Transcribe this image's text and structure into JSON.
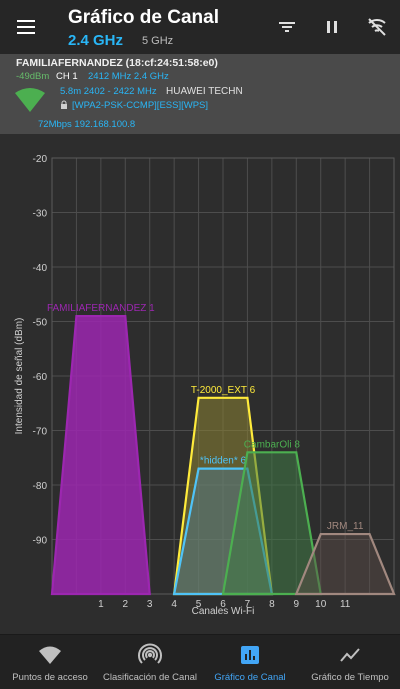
{
  "toolbar": {
    "title": "Gráfico de Canal",
    "band_active": "2.4 GHz",
    "band_inactive": "5 GHz",
    "icons": [
      "menu-icon",
      "filter-icon",
      "pause-icon",
      "wifi-off-icon"
    ]
  },
  "ap_info": {
    "ssid": "FAMILIAFERNANDEZ (18:cf:24:51:58:e0)",
    "signal": "-49dBm",
    "channel": "CH 1",
    "frequency": "2412 MHz  2.4 GHz",
    "range": "5.8m  2402 - 2422 MHz",
    "vendor": "HUAWEI TECHN",
    "capabilities": "[WPA2-PSK-CCMP][ESS][WPS]",
    "link": "72Mbps 192.168.100.8",
    "icons": [
      "wifi-signal-icon",
      "lock-icon"
    ]
  },
  "chart_data": {
    "type": "area",
    "xlabel": "Canales Wi-Fi",
    "ylabel": "Intensidad de señal (dBm)",
    "ylim": [
      -100,
      -20
    ],
    "yticks": [
      -20,
      -30,
      -40,
      -50,
      -60,
      -70,
      -80,
      -90
    ],
    "xlim": [
      -1,
      13
    ],
    "xticks": [
      "1",
      "2",
      "3",
      "4",
      "5",
      "6",
      "7",
      "8",
      "9",
      "10",
      "11"
    ],
    "grid": true,
    "series": [
      {
        "name": "FAMILIAFERNANDEZ 1",
        "channel": 1,
        "signal": -49,
        "color": "#9c27b0",
        "fill": "#9c27b0",
        "fill_opacity": 0.85
      },
      {
        "name": "T-2000_EXT 6",
        "channel": 6,
        "signal": -64,
        "color": "#ffeb3b",
        "fill": "#8d8433",
        "fill_opacity": 0.55
      },
      {
        "name": "*hidden* 6",
        "channel": 6,
        "signal": -77,
        "color": "#4fc3f7",
        "fill": "#4f7f96",
        "fill_opacity": 0.45
      },
      {
        "name": "CambarOli 8",
        "channel": 8,
        "signal": -74,
        "color": "#4caf50",
        "fill": "#3f7a45",
        "fill_opacity": 0.55
      },
      {
        "name": "JRM_11",
        "channel": 11,
        "signal": -89,
        "color": "#a1887f",
        "fill": "#5d4e4a",
        "fill_opacity": 0.45
      }
    ]
  },
  "bottom_nav": {
    "items": [
      {
        "label": "Puntos de acceso",
        "icon": "wifi-icon",
        "active": false
      },
      {
        "label": "Clasificación de Canal",
        "icon": "signal-icon",
        "active": false
      },
      {
        "label": "Gráfico de Canal",
        "icon": "bar-chart-icon",
        "active": true
      },
      {
        "label": "Gráfico de Tiempo",
        "icon": "line-chart-icon",
        "active": false
      }
    ]
  },
  "colors": {
    "accent": "#42a5f5",
    "background": "#2b2b2b"
  }
}
